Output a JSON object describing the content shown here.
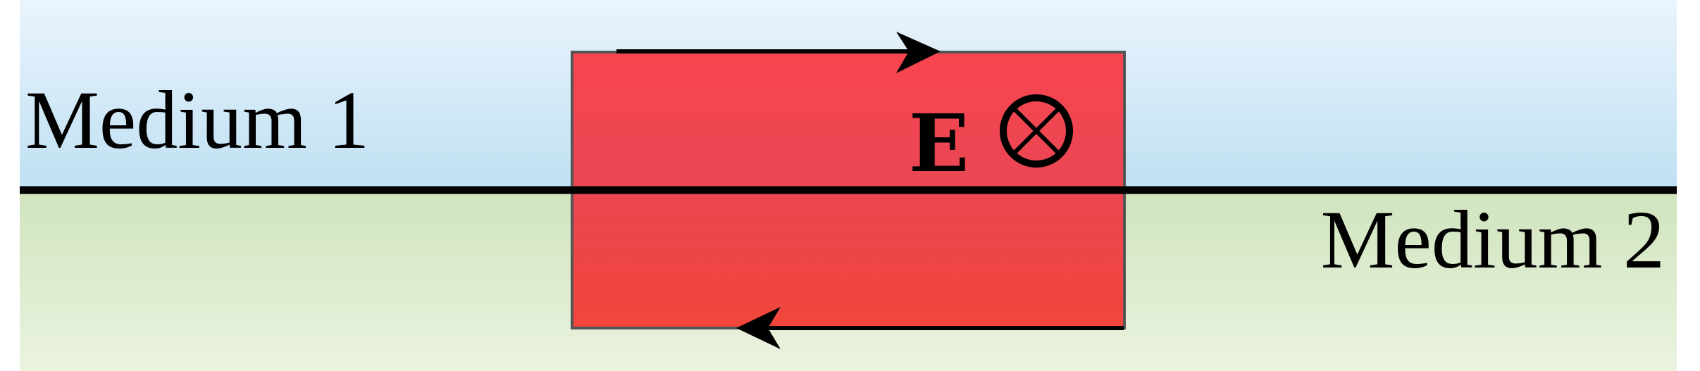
{
  "diagram": {
    "medium_1_label": "Medium 1",
    "medium_2_label": "Medium 2",
    "field_label": "E",
    "field_direction": "into-page",
    "loop_direction": "clockwise",
    "colors": {
      "medium_1_top": "#eaf4fc",
      "medium_1_bottom": "#bfe0f3",
      "medium_2_top": "#cfe4bd",
      "medium_2_bottom": "#ebf3e0",
      "loop_fill_top": "#ea4653",
      "loop_fill_bottom": "#f2463c",
      "loop_outline": "#555555",
      "interface_line": "#000000",
      "arrow": "#000000"
    }
  }
}
